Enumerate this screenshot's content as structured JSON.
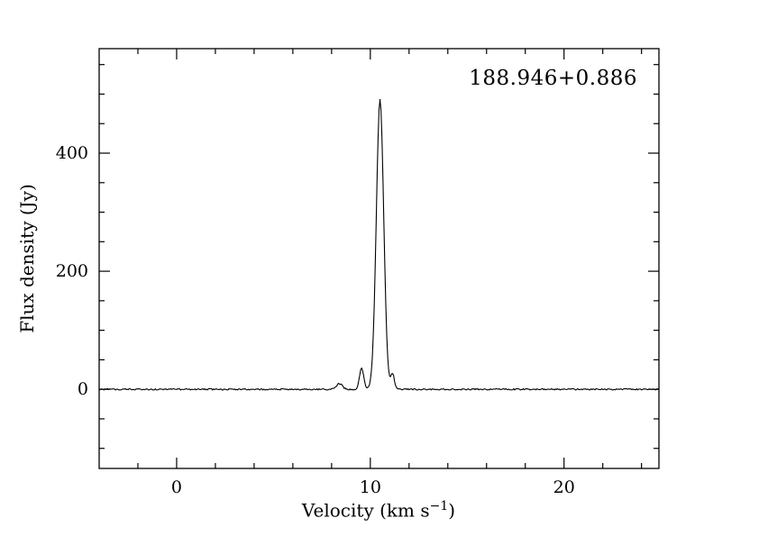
{
  "chart_data": {
    "type": "line",
    "annotation": "188.946+0.886",
    "ylabel": "Flux density (Jy)",
    "xlabel_prefix": "Velocity (km s",
    "xlabel_sup": "−1",
    "xlabel_suffix": ")",
    "xlim": [
      -4.0,
      24.9
    ],
    "ylim": [
      -134,
      577
    ],
    "xticks": [
      0,
      10,
      20
    ],
    "yticks": [
      0,
      200,
      400
    ],
    "x_minor_step": 2,
    "y_minor_step": 50,
    "x_sample_step": 0.05,
    "baseline_jy": 0,
    "noise_amplitude_jy": 1.2,
    "peaks": [
      {
        "center_kms": 8.4,
        "amplitude_jy": 10,
        "sigma_kms": 0.15
      },
      {
        "center_kms": 9.55,
        "amplitude_jy": 36,
        "sigma_kms": 0.11
      },
      {
        "center_kms": 10.5,
        "amplitude_jy": 490,
        "sigma_kms": 0.19
      },
      {
        "center_kms": 11.15,
        "amplitude_jy": 26,
        "sigma_kms": 0.09
      }
    ],
    "line_color": "#000000",
    "background_color": "#ffffff",
    "legend": "none",
    "grid": "off"
  }
}
